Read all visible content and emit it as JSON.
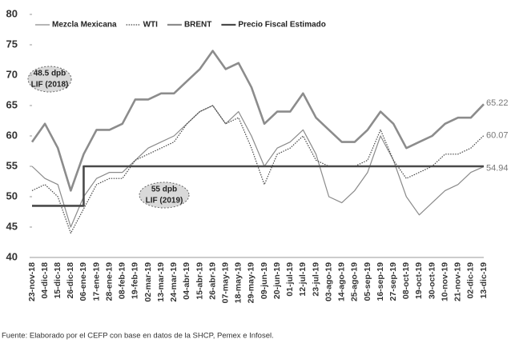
{
  "chart_data": {
    "type": "line",
    "categories": [
      "23-nov-18",
      "04-dic-18",
      "15-dic-18",
      "26-dic-18",
      "06-ene-19",
      "17-ene-19",
      "28-ene-19",
      "08-feb-19",
      "19-feb-19",
      "02-mar-19",
      "13-mar-19",
      "24-mar-19",
      "04-abr-19",
      "15-abr-19",
      "26-abr-19",
      "07-may-19",
      "18-may-19",
      "29-may-19",
      "09-jun-19",
      "20-jun-19",
      "01-jul-19",
      "12-jul-19",
      "23-jul-19",
      "03-ago-19",
      "14-ago-19",
      "25-ago-19",
      "05-sep-19",
      "16-sep-19",
      "27-sep-19",
      "08-oct-19",
      "19-oct-19",
      "30-oct-19",
      "10-nov-19",
      "21-nov-19",
      "02-dic-19",
      "13-dic-19"
    ],
    "series": [
      {
        "name": "Mezcla Mexicana",
        "color": "#8a8a8a",
        "width": 1.2,
        "values": [
          55,
          53,
          52,
          45,
          50,
          53,
          54,
          54,
          56,
          58,
          59,
          60,
          62,
          64,
          65,
          62,
          64,
          60,
          55,
          58,
          59,
          61,
          57,
          50,
          49,
          51,
          54,
          60,
          56,
          50,
          47,
          49,
          51,
          52,
          54,
          54.94
        ]
      },
      {
        "name": "WTI",
        "color": "#444444",
        "width": 1.2,
        "dash": true,
        "values": [
          51,
          52,
          50,
          44,
          48,
          52,
          53,
          53,
          56,
          57,
          58,
          59,
          62,
          64,
          65,
          62,
          63,
          58,
          52,
          57,
          58,
          60,
          56,
          55,
          55,
          55,
          56,
          61,
          56,
          53,
          54,
          55,
          57,
          57,
          58,
          60.07
        ]
      },
      {
        "name": "BRENT",
        "color": "#8c8c8c",
        "width": 2.6,
        "values": [
          59,
          62,
          58,
          51,
          57,
          61,
          61,
          62,
          66,
          66,
          67,
          67,
          69,
          71,
          74,
          71,
          72,
          68,
          62,
          64,
          64,
          67,
          63,
          61,
          59,
          59,
          61,
          64,
          62,
          58,
          59,
          60,
          62,
          63,
          63,
          65.22
        ]
      },
      {
        "name": "Precio Fiscal Estimado",
        "color": "#4a4a4a",
        "width": 2.6,
        "step": true,
        "values": [
          48.5,
          48.5,
          48.5,
          48.5,
          55,
          55,
          55,
          55,
          55,
          55,
          55,
          55,
          55,
          55,
          55,
          55,
          55,
          55,
          55,
          55,
          55,
          55,
          55,
          55,
          55,
          55,
          55,
          55,
          55,
          55,
          55,
          55,
          55,
          55,
          55,
          55
        ]
      }
    ],
    "ylim": [
      40,
      80
    ],
    "yticks": [
      40,
      45,
      50,
      55,
      60,
      65,
      70,
      75,
      80
    ],
    "annotations": [
      [
        "48.5 dpb",
        "LIF (2018)"
      ],
      [
        "55 dpb",
        "LIF (2019)"
      ]
    ],
    "source": "Fuente: Elaborado por el CEFP con base en datos de la SHCP, Pemex e Infosel."
  }
}
